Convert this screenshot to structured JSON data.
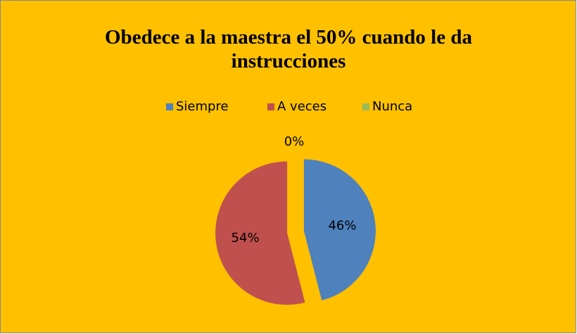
{
  "chart_data": {
    "type": "pie",
    "title": "Obedece a la maestra el 50% cuando le da instrucciones",
    "categories": [
      "Siempre",
      "A veces",
      "Nunca"
    ],
    "values": [
      46,
      54,
      0
    ],
    "value_labels": [
      "46%",
      "54%",
      "0%"
    ],
    "colors": [
      "#4f81bd",
      "#c0504d",
      "#9bbb59"
    ],
    "legend": "top",
    "background": "#ffc000"
  }
}
